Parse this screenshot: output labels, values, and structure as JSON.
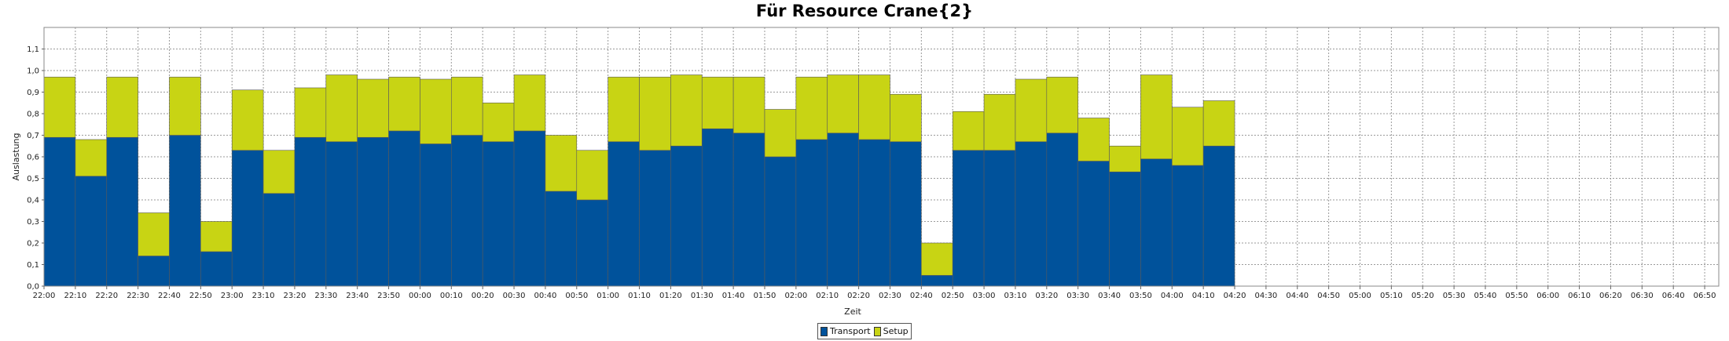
{
  "chart_data": {
    "type": "bar",
    "stacked": true,
    "title": "Für Resource Crane{2}",
    "xlabel": "Zeit",
    "ylabel": "Auslastung",
    "ylim": [
      0,
      1.2
    ],
    "yticks": [
      "0,0",
      "0,1",
      "0,2",
      "0,3",
      "0,4",
      "0,5",
      "0,6",
      "0,7",
      "0,8",
      "0,9",
      "1,0",
      "1,1"
    ],
    "xticks": [
      "22:00",
      "22:10",
      "22:20",
      "22:30",
      "22:40",
      "22:50",
      "23:00",
      "23:10",
      "23:20",
      "23:30",
      "23:40",
      "23:50",
      "00:00",
      "00:10",
      "00:20",
      "00:30",
      "00:40",
      "00:50",
      "01:00",
      "01:10",
      "01:20",
      "01:30",
      "01:40",
      "01:50",
      "02:00",
      "02:10",
      "02:20",
      "02:30",
      "02:40",
      "02:50",
      "03:00",
      "03:10",
      "03:20",
      "03:30",
      "03:40",
      "03:50",
      "04:00",
      "04:10",
      "04:20",
      "04:30",
      "04:40",
      "04:50",
      "05:00",
      "05:10",
      "05:20",
      "05:30",
      "05:40",
      "05:50",
      "06:00",
      "06:10",
      "06:20",
      "06:30",
      "06:40",
      "06:50"
    ],
    "grid": true,
    "legend_position": "bottom",
    "series": [
      {
        "name": "Transport",
        "color": "#00529b",
        "values": [
          0.69,
          0.51,
          0.69,
          0.14,
          0.7,
          0.16,
          0.63,
          0.43,
          0.69,
          0.67,
          0.69,
          0.72,
          0.66,
          0.7,
          0.67,
          0.72,
          0.44,
          0.4,
          0.67,
          0.63,
          0.65,
          0.73,
          0.71,
          0.6,
          0.68,
          0.71,
          0.68,
          0.67,
          0.05,
          0.63,
          0.63,
          0.67,
          0.71,
          0.58,
          0.53,
          0.59,
          0.56,
          0.65
        ]
      },
      {
        "name": "Setup",
        "color": "#c8d414",
        "values": [
          0.28,
          0.17,
          0.28,
          0.2,
          0.27,
          0.14,
          0.28,
          0.2,
          0.23,
          0.31,
          0.27,
          0.25,
          0.3,
          0.27,
          0.18,
          0.26,
          0.26,
          0.23,
          0.3,
          0.34,
          0.33,
          0.24,
          0.26,
          0.22,
          0.29,
          0.27,
          0.3,
          0.22,
          0.15,
          0.18,
          0.26,
          0.29,
          0.26,
          0.2,
          0.12,
          0.39,
          0.27,
          0.21
        ]
      }
    ]
  }
}
